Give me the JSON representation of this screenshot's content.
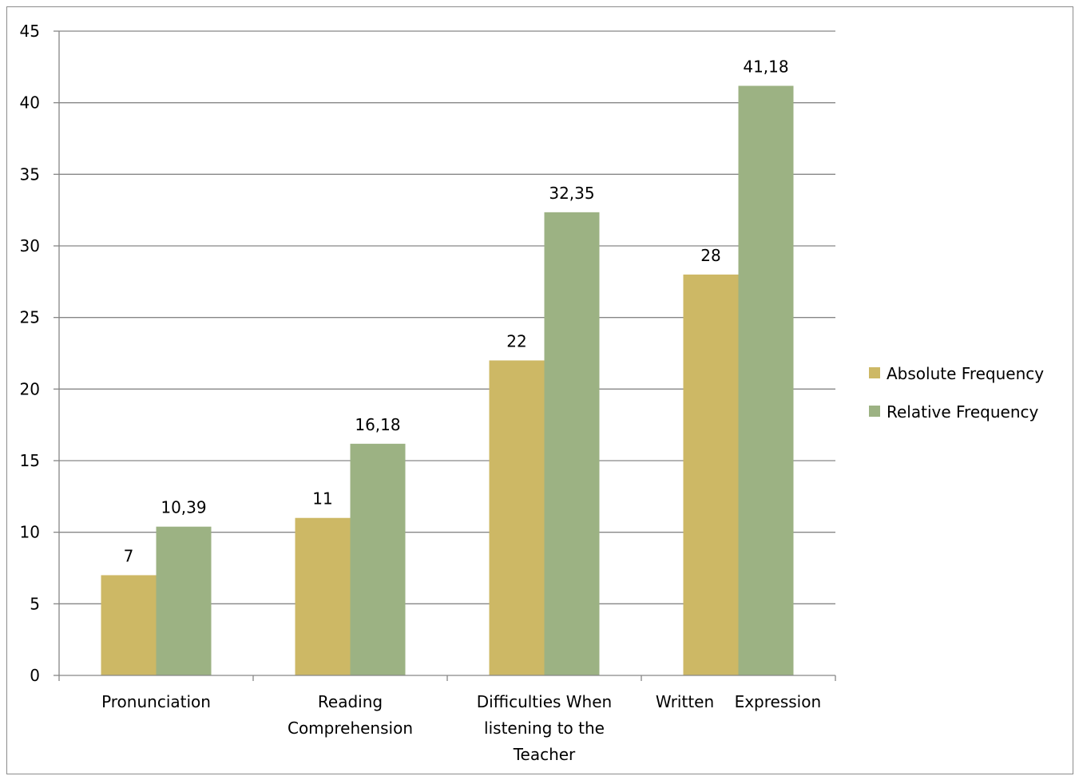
{
  "chart_data": {
    "type": "bar",
    "title": "",
    "xlabel": "",
    "ylabel": "",
    "categories": [
      [
        "Pronunciation"
      ],
      [
        "Reading",
        "Comprehension"
      ],
      [
        "Difficulties When",
        "listening to the",
        "Teacher"
      ],
      [
        "Written    Expression"
      ]
    ],
    "series": [
      {
        "name": "Absolute Frequency",
        "color": "#cdb865",
        "values": [
          7,
          11,
          22,
          28
        ],
        "labels": [
          "7",
          "11",
          "22",
          "28"
        ]
      },
      {
        "name": "Relative Frequency",
        "color": "#9cb283",
        "values": [
          10.39,
          16.18,
          32.35,
          41.18
        ],
        "labels": [
          "10,39",
          "16,18",
          "32,35",
          "41,18"
        ]
      }
    ],
    "ylim": [
      0,
      45
    ],
    "yticks": [
      "0",
      "5",
      "10",
      "15",
      "20",
      "25",
      "30",
      "35",
      "40",
      "45"
    ],
    "grid": true,
    "legend_position": "right"
  }
}
